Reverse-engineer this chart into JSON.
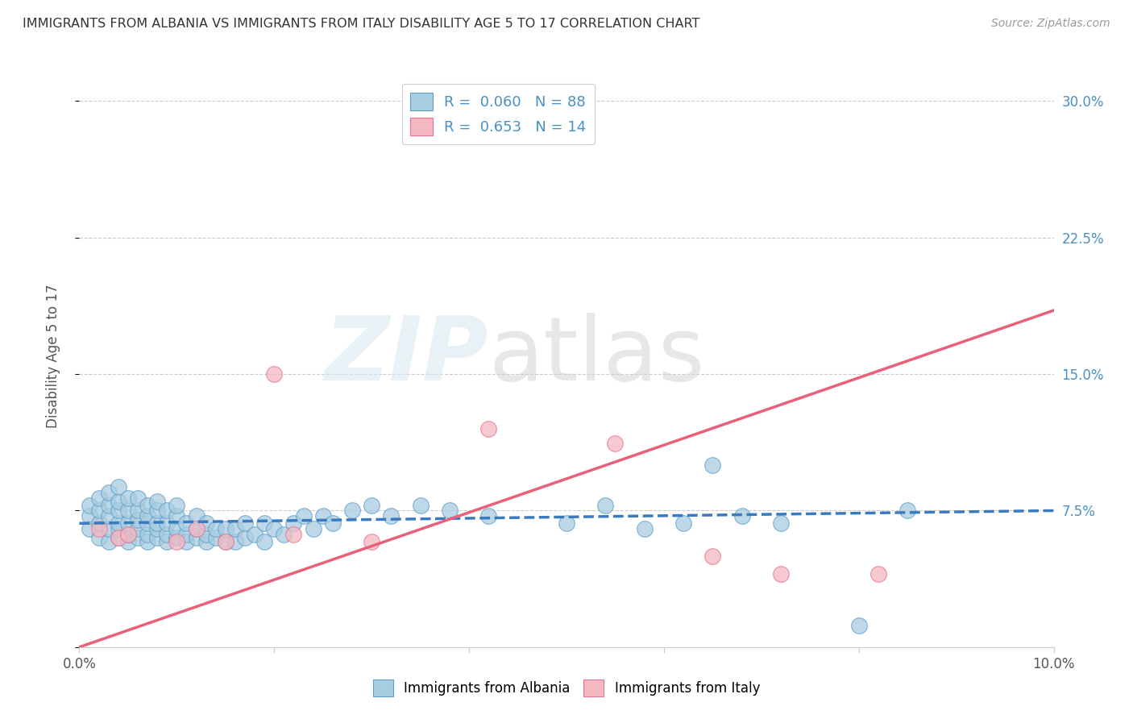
{
  "title": "IMMIGRANTS FROM ALBANIA VS IMMIGRANTS FROM ITALY DISABILITY AGE 5 TO 17 CORRELATION CHART",
  "source": "Source: ZipAtlas.com",
  "ylabel": "Disability Age 5 to 17",
  "xlim": [
    0.0,
    0.1
  ],
  "ylim": [
    0.0,
    0.32
  ],
  "xticks": [
    0.0,
    0.02,
    0.04,
    0.06,
    0.08,
    0.1
  ],
  "xticklabels": [
    "0.0%",
    "",
    "",
    "",
    "",
    "10.0%"
  ],
  "yticks": [
    0.0,
    0.075,
    0.15,
    0.225,
    0.3
  ],
  "yticklabels": [
    "",
    "7.5%",
    "15.0%",
    "22.5%",
    "30.0%"
  ],
  "albania_fill": "#a8cce0",
  "albania_edge": "#5b9ec9",
  "italy_fill": "#f4b8c1",
  "italy_edge": "#e87090",
  "albania_line_color": "#3a7abf",
  "italy_line_color": "#e8607a",
  "bg_color": "#ffffff",
  "grid_color": "#cccccc",
  "albania_scatter_x": [
    0.001,
    0.001,
    0.001,
    0.002,
    0.002,
    0.002,
    0.002,
    0.003,
    0.003,
    0.003,
    0.003,
    0.003,
    0.004,
    0.004,
    0.004,
    0.004,
    0.004,
    0.004,
    0.005,
    0.005,
    0.005,
    0.005,
    0.005,
    0.006,
    0.006,
    0.006,
    0.006,
    0.006,
    0.007,
    0.007,
    0.007,
    0.007,
    0.007,
    0.008,
    0.008,
    0.008,
    0.008,
    0.008,
    0.009,
    0.009,
    0.009,
    0.009,
    0.01,
    0.01,
    0.01,
    0.01,
    0.011,
    0.011,
    0.011,
    0.012,
    0.012,
    0.012,
    0.013,
    0.013,
    0.013,
    0.014,
    0.014,
    0.015,
    0.015,
    0.016,
    0.016,
    0.017,
    0.017,
    0.018,
    0.019,
    0.019,
    0.02,
    0.021,
    0.022,
    0.023,
    0.024,
    0.025,
    0.026,
    0.028,
    0.03,
    0.032,
    0.035,
    0.038,
    0.042,
    0.05,
    0.054,
    0.058,
    0.062,
    0.065,
    0.068,
    0.072,
    0.08,
    0.085
  ],
  "albania_scatter_y": [
    0.065,
    0.072,
    0.078,
    0.06,
    0.068,
    0.075,
    0.082,
    0.058,
    0.065,
    0.072,
    0.078,
    0.085,
    0.06,
    0.065,
    0.068,
    0.075,
    0.08,
    0.088,
    0.058,
    0.062,
    0.068,
    0.075,
    0.082,
    0.06,
    0.065,
    0.07,
    0.075,
    0.082,
    0.058,
    0.062,
    0.068,
    0.072,
    0.078,
    0.06,
    0.065,
    0.068,
    0.075,
    0.08,
    0.058,
    0.062,
    0.068,
    0.075,
    0.06,
    0.065,
    0.072,
    0.078,
    0.058,
    0.062,
    0.068,
    0.06,
    0.065,
    0.072,
    0.058,
    0.062,
    0.068,
    0.06,
    0.065,
    0.058,
    0.065,
    0.058,
    0.065,
    0.06,
    0.068,
    0.062,
    0.058,
    0.068,
    0.065,
    0.062,
    0.068,
    0.072,
    0.065,
    0.072,
    0.068,
    0.075,
    0.078,
    0.072,
    0.078,
    0.075,
    0.072,
    0.068,
    0.078,
    0.065,
    0.068,
    0.1,
    0.072,
    0.068,
    0.012,
    0.075
  ],
  "italy_scatter_x": [
    0.002,
    0.004,
    0.005,
    0.01,
    0.012,
    0.015,
    0.02,
    0.022,
    0.03,
    0.042,
    0.055,
    0.065,
    0.072,
    0.082
  ],
  "italy_scatter_y": [
    0.065,
    0.06,
    0.062,
    0.058,
    0.065,
    0.058,
    0.15,
    0.062,
    0.058,
    0.12,
    0.112,
    0.05,
    0.04,
    0.04
  ],
  "albania_line_x": [
    0.0,
    0.1
  ],
  "albania_line_y": [
    0.068,
    0.075
  ],
  "italy_line_x": [
    0.0,
    0.1
  ],
  "italy_line_y": [
    0.0,
    0.185
  ]
}
